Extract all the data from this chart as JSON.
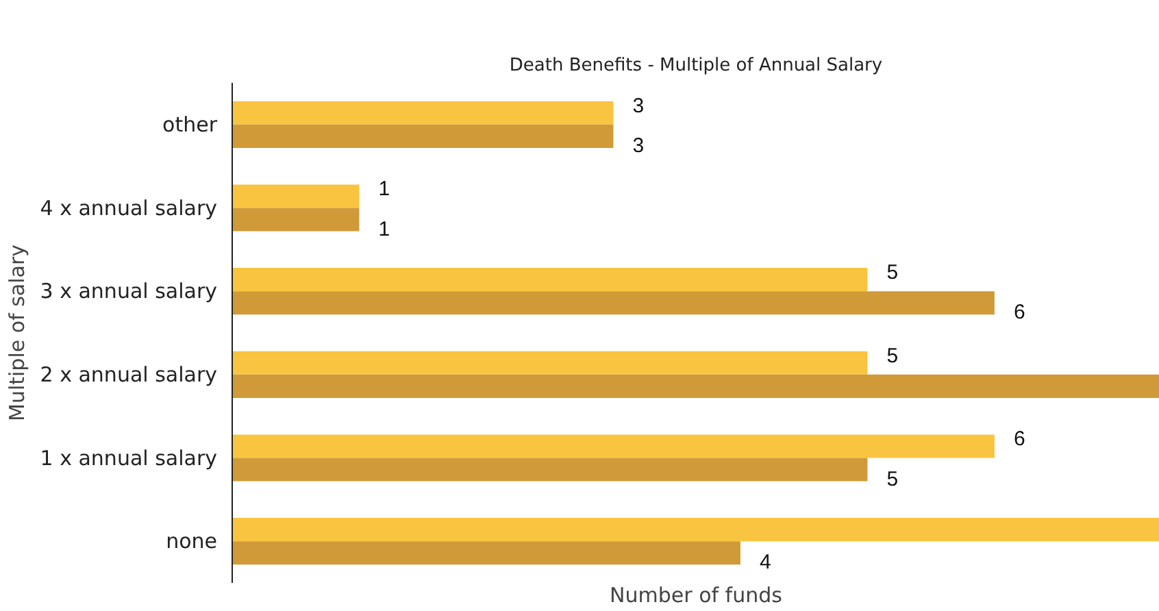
{
  "chart_data": {
    "type": "bar",
    "orientation": "horizontal",
    "title": "Death Benefits - Multiple of Annual Salary",
    "xlabel": "Number of funds",
    "ylabel": "Multiple of salary",
    "categories": [
      "other",
      "4 x annual salary",
      "3 x annual salary",
      "2 x annual salary",
      "1 x annual salary",
      "none"
    ],
    "xlim": [
      0,
      7.3
    ],
    "tick_labels": "y",
    "grid": false,
    "series": [
      {
        "color": "#f9c440",
        "values": [
          3,
          1,
          5,
          5,
          6,
          7.3
        ],
        "value_labels": [
          "3",
          "1",
          "5",
          "5",
          "6",
          null
        ]
      },
      {
        "color": "#d09a38",
        "values": [
          3,
          1,
          6,
          7.3,
          5,
          4
        ],
        "value_labels": [
          "3",
          "1",
          "6",
          null,
          "5",
          "4"
        ]
      }
    ]
  }
}
